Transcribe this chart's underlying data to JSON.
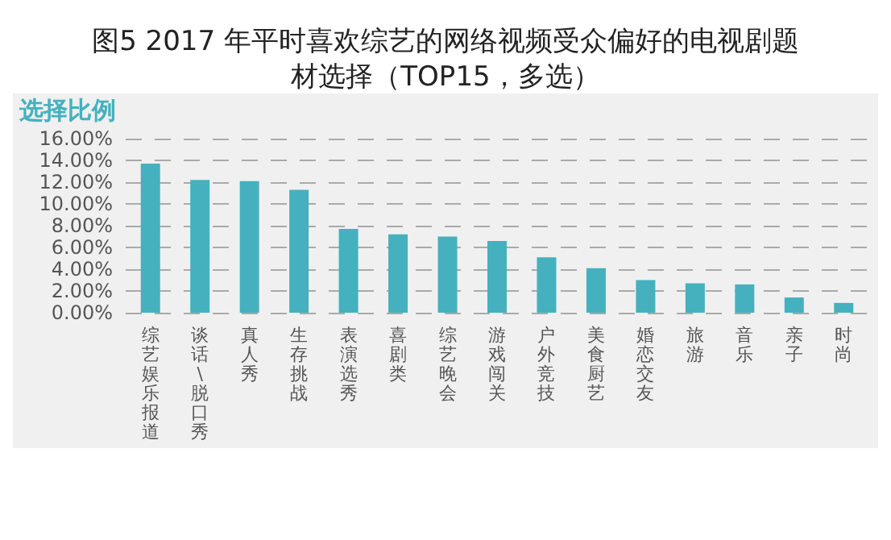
{
  "chart_data": {
    "type": "bar",
    "title": "图5 2017 年平时喜欢综艺的网络视频受众偏好的电视剧题材选择（TOP15，多选）",
    "ylabel": "选择比例",
    "categories": [
      "综艺娱乐报道",
      "谈话\\脱口秀",
      "真人秀",
      "生存挑战",
      "表演选秀",
      "喜剧类",
      "综艺晚会",
      "游戏闯关",
      "户外竞技",
      "美食厨艺",
      "婚恋交友",
      "旅游",
      "音乐",
      "亲子",
      "时尚"
    ],
    "values": [
      13.7,
      12.2,
      12.1,
      11.3,
      7.7,
      7.2,
      7.0,
      6.6,
      5.1,
      4.1,
      3.0,
      2.7,
      2.6,
      1.4,
      0.9
    ],
    "color": "#45b1be",
    "ylim": [
      0,
      16
    ],
    "yticks": [
      {
        "value": 0,
        "label": "0.00%"
      },
      {
        "value": 2,
        "label": "2.00%"
      },
      {
        "value": 4,
        "label": "4.00%"
      },
      {
        "value": 6,
        "label": "6.00%"
      },
      {
        "value": 8,
        "label": "8.00%"
      },
      {
        "value": 10,
        "label": "10.00%"
      },
      {
        "value": 12,
        "label": "12.00%"
      },
      {
        "value": 14,
        "label": "14.00%"
      },
      {
        "value": 16,
        "label": "16.00%"
      }
    ],
    "grid": "y"
  }
}
